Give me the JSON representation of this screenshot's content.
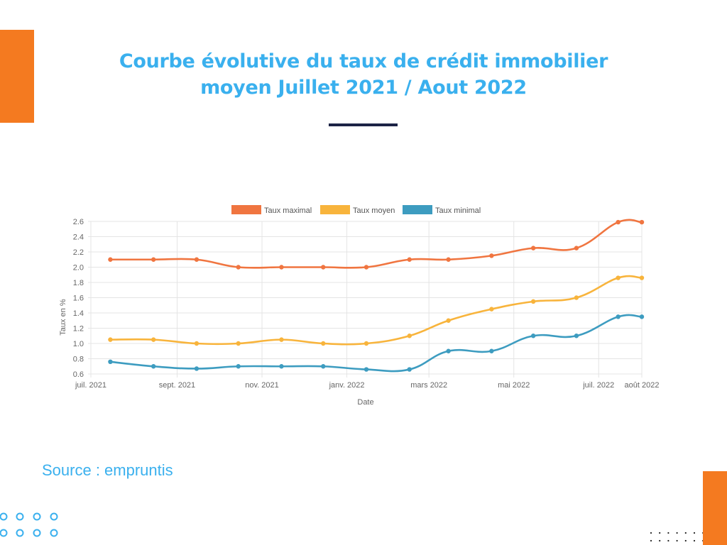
{
  "slide": {
    "title_line1": "Courbe évolutive du taux de crédit immobilier",
    "title_line2": "moyen Juillet 2021 / Aout 2022",
    "source": "Source : empruntis",
    "colors": {
      "accent": "#f47a20",
      "title": "#3ab0ee",
      "underline": "#1c2346"
    }
  },
  "chart_data": {
    "type": "line",
    "xlabel": "Date",
    "ylabel": "Taux en %",
    "x_ticks": [
      "juil. 2021",
      "sept. 2021",
      "nov. 2021",
      "janv. 2022",
      "mars 2022",
      "mai 2022",
      "juil. 2022",
      "août 2022"
    ],
    "x_tick_days": [
      0,
      62,
      123,
      184,
      243,
      304,
      365,
      396
    ],
    "y_ticks": [
      "0.6",
      "0.8",
      "1.0",
      "1.2",
      "1.4",
      "1.6",
      "1.8",
      "2.0",
      "2.2",
      "2.4",
      "2.6"
    ],
    "ylim": [
      0.6,
      2.6
    ],
    "grid": true,
    "legend_position": "top",
    "x_dates": [
      "2021-07-15",
      "2021-08-15",
      "2021-09-15",
      "2021-10-15",
      "2021-11-15",
      "2021-12-15",
      "2022-01-15",
      "2022-02-15",
      "2022-03-15",
      "2022-04-15",
      "2022-05-15",
      "2022-06-15",
      "2022-07-15",
      "2022-08-01"
    ],
    "x_days": [
      14,
      45,
      76,
      106,
      137,
      167,
      198,
      229,
      257,
      288,
      318,
      349,
      379,
      396
    ],
    "series": [
      {
        "name": "Taux maximal",
        "color": "#f07540",
        "values": [
          2.1,
          2.1,
          2.1,
          2.0,
          2.0,
          2.0,
          2.0,
          2.1,
          2.1,
          2.15,
          2.25,
          2.25,
          2.59,
          2.59
        ]
      },
      {
        "name": "Taux moyen",
        "color": "#f8b43c",
        "values": [
          1.05,
          1.05,
          1.0,
          1.0,
          1.05,
          1.0,
          1.0,
          1.1,
          1.3,
          1.45,
          1.55,
          1.6,
          1.86,
          1.86
        ]
      },
      {
        "name": "Taux minimal",
        "color": "#3d9cc0",
        "values": [
          0.76,
          0.7,
          0.67,
          0.7,
          0.7,
          0.7,
          0.66,
          0.66,
          0.9,
          0.9,
          1.1,
          1.1,
          1.35,
          1.35
        ]
      }
    ]
  }
}
